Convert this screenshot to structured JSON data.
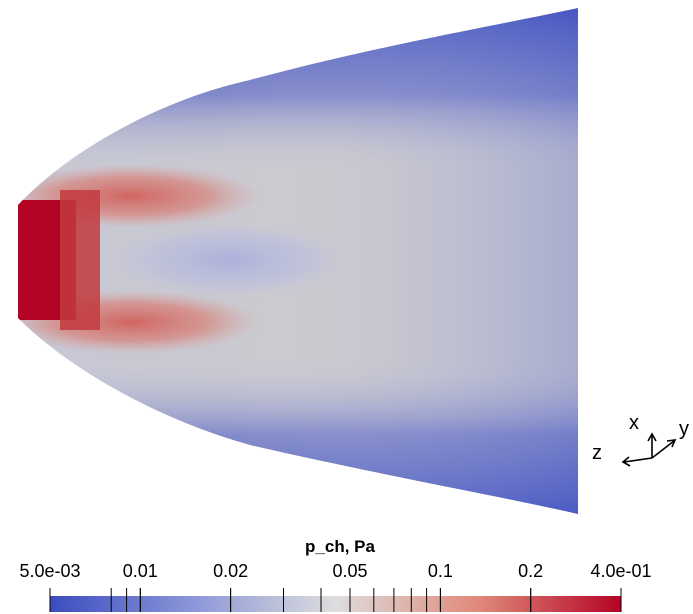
{
  "scalar_bar": {
    "title": "p_ch,  Pa",
    "range": [
      0.005,
      0.4
    ],
    "scale": "log",
    "labels": [
      {
        "text": "5.0e-03",
        "value": 0.005
      },
      {
        "text": "0.01",
        "value": 0.01
      },
      {
        "text": "0.02",
        "value": 0.02
      },
      {
        "text": "0.05",
        "value": 0.05
      },
      {
        "text": "0.1",
        "value": 0.1
      },
      {
        "text": "0.2",
        "value": 0.2
      },
      {
        "text": "4.0e-01",
        "value": 0.4
      }
    ],
    "minor_ticks": [
      0.008,
      0.009,
      0.01,
      0.02,
      0.03,
      0.04,
      0.05,
      0.06,
      0.07,
      0.08,
      0.09,
      0.1,
      0.2
    ],
    "colormap": [
      "#3b4cc0",
      "#dddddd",
      "#b40426"
    ]
  },
  "orientation_axes": {
    "x": "x",
    "y": "y",
    "z": "z"
  }
}
